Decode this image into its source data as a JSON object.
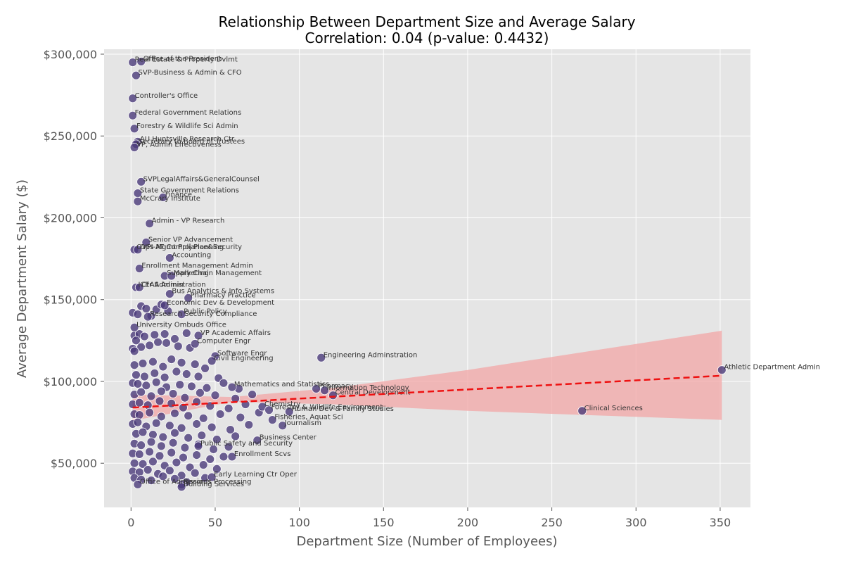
{
  "chart_data": {
    "type": "scatter",
    "title": "Relationship Between Department Size and Average Salary",
    "subtitle": "Correlation: 0.04 (p-value: 0.4432)",
    "xlabel": "Department Size (Number of Employees)",
    "ylabel": "Average Department Salary ($)",
    "xlim": [
      -16,
      368
    ],
    "ylim": [
      23000,
      303000
    ],
    "xticks": [
      0,
      50,
      100,
      150,
      200,
      250,
      300,
      350
    ],
    "xtick_labels": [
      "0",
      "50",
      "100",
      "150",
      "200",
      "250",
      "300",
      "350"
    ],
    "yticks": [
      50000,
      100000,
      150000,
      200000,
      250000,
      300000
    ],
    "ytick_labels": [
      "$50,000",
      "$100,000",
      "$150,000",
      "$200,000",
      "$250,000",
      "$300,000"
    ],
    "grid": true,
    "colors": {
      "point": "#4b3b7a",
      "trend": "#ee1111",
      "band": "#f2a5a5",
      "plot_bg": "#e5e5e5"
    },
    "trend": {
      "style": "dashed",
      "points": [
        [
          1,
          84000
        ],
        [
          351,
          103500
        ]
      ],
      "band_upper": [
        [
          1,
          92000
        ],
        [
          60,
          90500
        ],
        [
          120,
          96000
        ],
        [
          200,
          107000
        ],
        [
          351,
          131000
        ]
      ],
      "band_lower": [
        [
          1,
          76000
        ],
        [
          60,
          87500
        ],
        [
          120,
          86000
        ],
        [
          200,
          82000
        ],
        [
          351,
          76500
        ]
      ]
    },
    "labeled_points": [
      {
        "label": "Office of the President",
        "x": 6,
        "y": 295500
      },
      {
        "label": "Real Estate & Property Dvlmt",
        "x": 1,
        "y": 295000
      },
      {
        "label": "SVP-Business & Admin & CFO",
        "x": 3,
        "y": 287000
      },
      {
        "label": "Controller's Office",
        "x": 1,
        "y": 273000
      },
      {
        "label": "Federal Government Relations",
        "x": 1,
        "y": 262500
      },
      {
        "label": "Forestry & Wildlife Sci Admin",
        "x": 2,
        "y": 254500
      },
      {
        "label": "AU Huntsville Research Ctr",
        "x": 4,
        "y": 246500
      },
      {
        "label": "Secretary to Board of Trustees",
        "x": 3,
        "y": 245000
      },
      {
        "label": "VP, Admin Effectiveness",
        "x": 2,
        "y": 243000
      },
      {
        "label": "SVPLegalAffairs&GeneralCounsel",
        "x": 6,
        "y": 222000
      },
      {
        "label": "State Government Relations",
        "x": 4,
        "y": 215000
      },
      {
        "label": "Finance",
        "x": 19,
        "y": 212500
      },
      {
        "label": "McCrary Institute",
        "x": 4,
        "y": 210000
      },
      {
        "label": "Admin - VP Research",
        "x": 11,
        "y": 196500
      },
      {
        "label": "Senior VP Advancement",
        "x": 9,
        "y": 185000
      },
      {
        "label": "OVPI-AT Compliance&Security",
        "x": 2,
        "y": 180500
      },
      {
        "label": "Ops Mgmt Proj Planning",
        "x": 4,
        "y": 180500
      },
      {
        "label": "Accounting",
        "x": 23,
        "y": 175500
      },
      {
        "label": "Enrollment Management Admin",
        "x": 5,
        "y": 169000
      },
      {
        "label": "Supply Chain Management",
        "x": 20,
        "y": 164500
      },
      {
        "label": "Marketing",
        "x": 24,
        "y": 164500
      },
      {
        "label": "ICEAS Admin",
        "x": 3,
        "y": 157500
      },
      {
        "label": "Ctr Administration",
        "x": 5,
        "y": 157500
      },
      {
        "label": "Bus Analytics & Info Systems",
        "x": 23,
        "y": 153500
      },
      {
        "label": "Pharmacy Practice",
        "x": 34,
        "y": 151000
      },
      {
        "label": "Economic Dev & Development",
        "x": 20,
        "y": 146500
      },
      {
        "label": "Research Security Compliance",
        "x": 10,
        "y": 139500
      },
      {
        "label": "Public Policy",
        "x": 30,
        "y": 141000
      },
      {
        "label": "University Ombuds Office",
        "x": 2,
        "y": 133000
      },
      {
        "label": "VP Academic Affairs",
        "x": 40,
        "y": 128000
      },
      {
        "label": "Computer Engr",
        "x": 38,
        "y": 123000
      },
      {
        "label": "Software Engr",
        "x": 50,
        "y": 115500
      },
      {
        "label": "Engineering Adminstration",
        "x": 113,
        "y": 114500
      },
      {
        "label": "Civil Engineering",
        "x": 48,
        "y": 112500
      },
      {
        "label": "Athletic Department Admin",
        "x": 351,
        "y": 107000
      },
      {
        "label": "Mathematics and Statistics",
        "x": 60,
        "y": 96500
      },
      {
        "label": "Pharmacy",
        "x": 110,
        "y": 95500
      },
      {
        "label": "Information Technology",
        "x": 115,
        "y": 94500
      },
      {
        "label": "Central Development",
        "x": 120,
        "y": 91500
      },
      {
        "label": "Chemistry",
        "x": 78,
        "y": 84500
      },
      {
        "label": "Forestry & Wildlife Environment",
        "x": 82,
        "y": 82500
      },
      {
        "label": "Human Dev & Family Studies",
        "x": 94,
        "y": 81500
      },
      {
        "label": "Clinical Sciences",
        "x": 268,
        "y": 82000
      },
      {
        "label": "Fisheries, Aquat Sci",
        "x": 84,
        "y": 76500
      },
      {
        "label": "Journalism",
        "x": 90,
        "y": 73000
      },
      {
        "label": "Business Center",
        "x": 75,
        "y": 64000
      },
      {
        "label": "Public Safety and Security",
        "x": 40,
        "y": 60500
      },
      {
        "label": "Enrollment Scvs",
        "x": 60,
        "y": 54000
      },
      {
        "label": "Early Learning Ctr Oper",
        "x": 48,
        "y": 41500
      },
      {
        "label": "Office of Admissions",
        "x": 4,
        "y": 37000
      },
      {
        "label": "Records Processing",
        "x": 30,
        "y": 37000
      },
      {
        "label": "Building Services",
        "x": 30,
        "y": 35500
      }
    ],
    "points": [
      [
        1,
        142000
      ],
      [
        6,
        146000
      ],
      [
        9,
        144500
      ],
      [
        4,
        141000
      ],
      [
        15,
        144000
      ],
      [
        22,
        143000
      ],
      [
        18,
        147000
      ],
      [
        12,
        140000
      ],
      [
        2,
        128000
      ],
      [
        5,
        129000
      ],
      [
        8,
        127500
      ],
      [
        14,
        128500
      ],
      [
        20,
        129000
      ],
      [
        26,
        126000
      ],
      [
        33,
        129500
      ],
      [
        3,
        125000
      ],
      [
        1,
        120000
      ],
      [
        6,
        121000
      ],
      [
        11,
        122000
      ],
      [
        16,
        124000
      ],
      [
        21,
        123500
      ],
      [
        28,
        121500
      ],
      [
        35,
        120500
      ],
      [
        2,
        118500
      ],
      [
        2,
        110000
      ],
      [
        7,
        111000
      ],
      [
        13,
        112000
      ],
      [
        19,
        109000
      ],
      [
        24,
        113500
      ],
      [
        30,
        111500
      ],
      [
        38,
        110500
      ],
      [
        44,
        108000
      ],
      [
        3,
        104000
      ],
      [
        8,
        103000
      ],
      [
        14,
        105000
      ],
      [
        20,
        102500
      ],
      [
        27,
        106000
      ],
      [
        33,
        104500
      ],
      [
        40,
        103000
      ],
      [
        52,
        102000
      ],
      [
        1,
        99000
      ],
      [
        4,
        98500
      ],
      [
        9,
        97500
      ],
      [
        15,
        99500
      ],
      [
        21,
        96500
      ],
      [
        29,
        98000
      ],
      [
        36,
        97000
      ],
      [
        45,
        96000
      ],
      [
        55,
        99000
      ],
      [
        64,
        95500
      ],
      [
        2,
        92000
      ],
      [
        6,
        93500
      ],
      [
        12,
        91000
      ],
      [
        18,
        94000
      ],
      [
        25,
        92500
      ],
      [
        32,
        90000
      ],
      [
        41,
        93000
      ],
      [
        50,
        91500
      ],
      [
        62,
        89500
      ],
      [
        72,
        92000
      ],
      [
        1,
        86000
      ],
      [
        5,
        87000
      ],
      [
        10,
        85500
      ],
      [
        17,
        88000
      ],
      [
        24,
        86500
      ],
      [
        31,
        84000
      ],
      [
        39,
        87500
      ],
      [
        47,
        85000
      ],
      [
        58,
        83500
      ],
      [
        68,
        86000
      ],
      [
        2,
        80000
      ],
      [
        5,
        79500
      ],
      [
        11,
        81000
      ],
      [
        18,
        78500
      ],
      [
        26,
        80500
      ],
      [
        34,
        79000
      ],
      [
        43,
        77500
      ],
      [
        53,
        80000
      ],
      [
        65,
        78000
      ],
      [
        76,
        81000
      ],
      [
        1,
        74000
      ],
      [
        4,
        75000
      ],
      [
        9,
        72500
      ],
      [
        15,
        74500
      ],
      [
        23,
        73000
      ],
      [
        30,
        71500
      ],
      [
        39,
        74000
      ],
      [
        48,
        72000
      ],
      [
        59,
        70500
      ],
      [
        70,
        73500
      ],
      [
        3,
        68000
      ],
      [
        7,
        69000
      ],
      [
        13,
        67500
      ],
      [
        19,
        66000
      ],
      [
        26,
        68500
      ],
      [
        34,
        65500
      ],
      [
        42,
        67000
      ],
      [
        51,
        64500
      ],
      [
        62,
        66500
      ],
      [
        2,
        62000
      ],
      [
        6,
        61000
      ],
      [
        12,
        63000
      ],
      [
        18,
        60500
      ],
      [
        25,
        62500
      ],
      [
        32,
        59500
      ],
      [
        40,
        61500
      ],
      [
        49,
        58500
      ],
      [
        58,
        60000
      ],
      [
        1,
        56000
      ],
      [
        5,
        55500
      ],
      [
        11,
        57000
      ],
      [
        17,
        54500
      ],
      [
        24,
        56500
      ],
      [
        31,
        53500
      ],
      [
        39,
        55000
      ],
      [
        47,
        52500
      ],
      [
        55,
        54000
      ],
      [
        2,
        50000
      ],
      [
        7,
        49500
      ],
      [
        13,
        51000
      ],
      [
        20,
        48500
      ],
      [
        27,
        50500
      ],
      [
        35,
        47500
      ],
      [
        43,
        49000
      ],
      [
        51,
        46500
      ],
      [
        1,
        45000
      ],
      [
        5,
        44500
      ],
      [
        10,
        46000
      ],
      [
        16,
        43500
      ],
      [
        23,
        45500
      ],
      [
        30,
        42500
      ],
      [
        38,
        44000
      ],
      [
        44,
        41000
      ],
      [
        2,
        41000
      ],
      [
        6,
        40000
      ],
      [
        12,
        39500
      ],
      [
        19,
        42000
      ],
      [
        26,
        40500
      ],
      [
        33,
        38500
      ]
    ]
  }
}
